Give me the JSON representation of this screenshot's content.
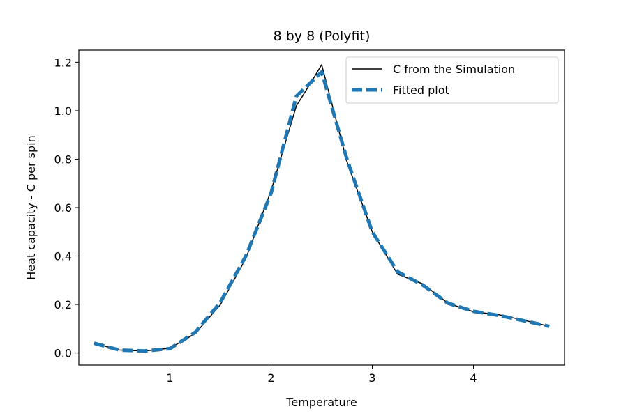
{
  "chart_data": {
    "type": "line",
    "title": "8 by 8 (Polyfit)",
    "xlabel": "Temperature",
    "ylabel": "Heat capacity - C per spin",
    "xlim": [
      0.1,
      4.9
    ],
    "ylim": [
      -0.05,
      1.25
    ],
    "xticks": [
      1,
      2,
      3,
      4
    ],
    "yticks": [
      0.0,
      0.2,
      0.4,
      0.6,
      0.8,
      1.0,
      1.2
    ],
    "xtick_labels": [
      "1",
      "2",
      "3",
      "4"
    ],
    "ytick_labels": [
      "0.0",
      "0.2",
      "0.4",
      "0.6",
      "0.8",
      "1.0",
      "1.2"
    ],
    "grid": false,
    "legend": "top-right",
    "series": [
      {
        "name": "C from the Simulation",
        "color": "#000000",
        "style": "solid",
        "x": [
          0.25,
          0.5,
          0.75,
          1.0,
          1.25,
          1.5,
          1.75,
          2.0,
          2.25,
          2.4,
          2.5,
          2.75,
          3.0,
          3.25,
          3.5,
          3.75,
          4.0,
          4.25,
          4.5,
          4.75
        ],
        "y": [
          0.04,
          0.012,
          0.008,
          0.02,
          0.08,
          0.2,
          0.39,
          0.67,
          1.02,
          1.12,
          1.19,
          0.79,
          0.5,
          0.325,
          0.285,
          0.205,
          0.17,
          0.158,
          0.135,
          0.11
        ]
      },
      {
        "name": "Fitted plot",
        "color": "#1f77b4",
        "style": "dashed",
        "x": [
          0.25,
          0.5,
          0.75,
          1.0,
          1.25,
          1.5,
          1.75,
          2.0,
          2.25,
          2.4,
          2.5,
          2.75,
          3.0,
          3.25,
          3.5,
          3.75,
          4.0,
          4.25,
          4.5,
          4.75
        ],
        "y": [
          0.04,
          0.012,
          0.008,
          0.018,
          0.085,
          0.21,
          0.4,
          0.66,
          1.06,
          1.12,
          1.16,
          0.8,
          0.5,
          0.335,
          0.28,
          0.205,
          0.172,
          0.155,
          0.133,
          0.11
        ]
      }
    ]
  }
}
